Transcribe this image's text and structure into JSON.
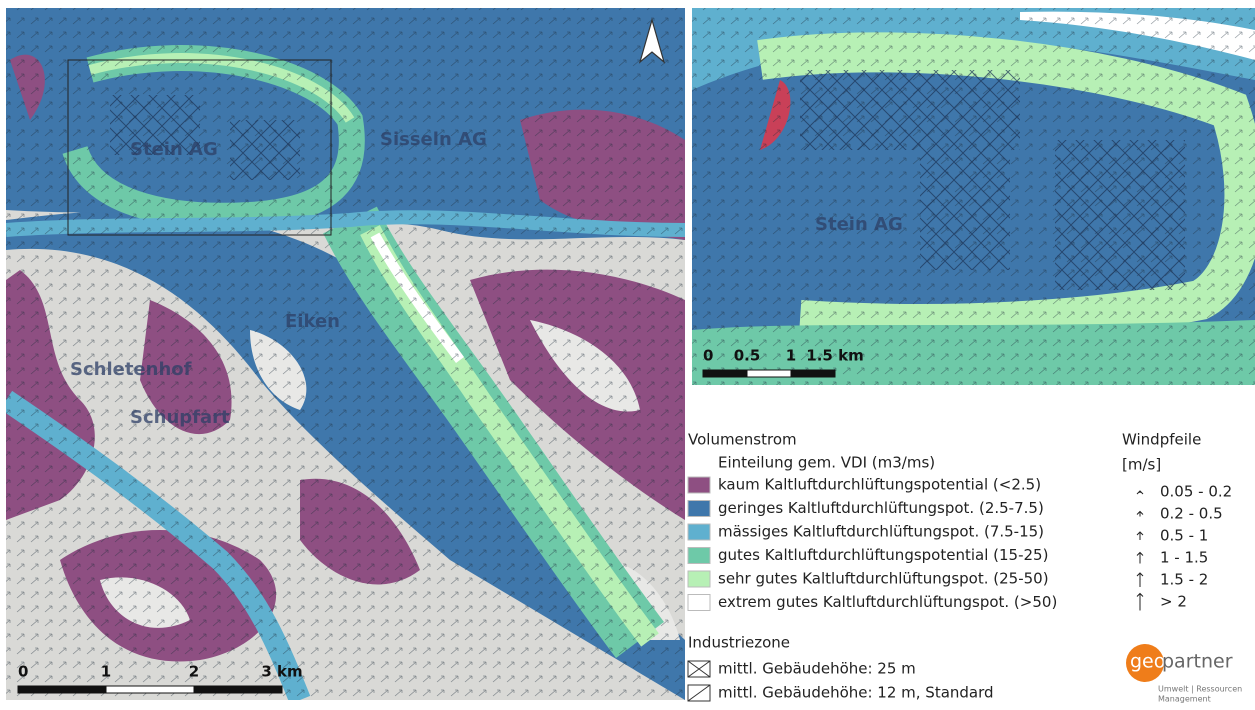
{
  "main_map": {
    "places": [
      "Sisseln AG",
      "Eiken",
      "Schupfart",
      "Schletenhof",
      "Stein AG"
    ],
    "scale": [
      "0",
      "1",
      "2",
      "3 km"
    ]
  },
  "inset_map": {
    "places": [
      "Stein AG"
    ],
    "scale": [
      "0",
      "0.5",
      "1",
      "1.5 km"
    ]
  },
  "legend": {
    "title": "Volumenstrom",
    "subtitle": "Einteilung gem. VDI (m3/ms)",
    "items": [
      {
        "label": "kaum Kaltluftdurchlüftungspotential (<2.5)",
        "color": "#8e4f82"
      },
      {
        "label": "geringes Kaltluftdurchlüftungspot. (2.5-7.5)",
        "color": "#3f77ab"
      },
      {
        "label": "mässiges Kaltluftdurchlüftungspot. (7.5-15)",
        "color": "#5fb0cf"
      },
      {
        "label": "gutes Kaltluftdurchlüftungspotential (15-25)",
        "color": "#6ec9a8"
      },
      {
        "label": "sehr gutes Kaltluftdurchlüftungspot. (25-50)",
        "color": "#b7f0b5"
      },
      {
        "label": "extrem gutes Kaltluftdurchlüftungspot. (>50)",
        "color": "#ffffff"
      }
    ],
    "wind_title": "Windpfeile",
    "wind_unit": "[m/s]",
    "wind_items": [
      "0.05 - 0.2",
      "0.2 - 0.5",
      "0.5 - 1",
      "1 - 1.5",
      "1.5 - 2",
      "> 2"
    ],
    "industry_title": "Industriezone",
    "industry_items": [
      "mittl. Gebäudehöhe: 25 m",
      "mittl. Gebäudehöhe: 12 m, Standard"
    ]
  },
  "logo": {
    "part1": "geo",
    "part2": "partner",
    "tagline1": "Umwelt | Ressourcen",
    "tagline2": "Management"
  }
}
